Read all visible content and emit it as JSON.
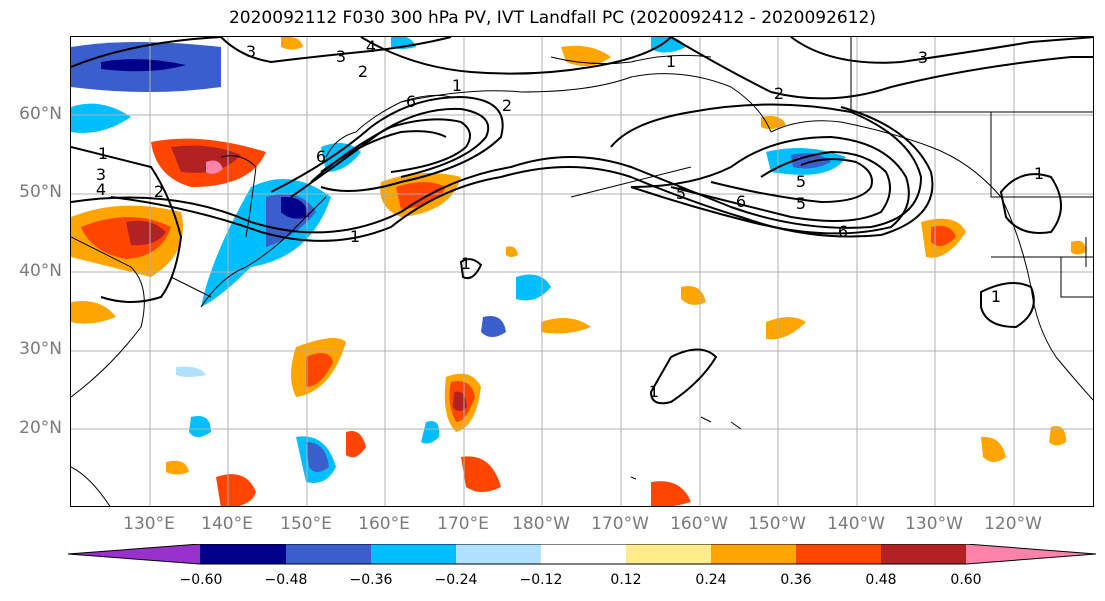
{
  "title": "2020092112 F030 300 hPa PV, IVT Landfall PC (2020092412 - 2020092612)",
  "lat_labels": [
    "60°N",
    "50°N",
    "40°N",
    "30°N",
    "20°N"
  ],
  "lon_labels": [
    "130°E",
    "140°E",
    "150°E",
    "160°E",
    "170°E",
    "180°W",
    "170°W",
    "160°W",
    "150°W",
    "140°W",
    "130°W",
    "120°W"
  ],
  "colorbar": {
    "ticks": [
      "−0.60",
      "−0.48",
      "−0.36",
      "−0.24",
      "−0.12",
      "0.12",
      "0.24",
      "0.36",
      "0.48",
      "0.60"
    ],
    "colors": [
      "#9932cc",
      "#00008b",
      "#3a5fcd",
      "#00bfff",
      "#b0e2ff",
      "#ffffff",
      "#ffec8b",
      "#ffa500",
      "#ff4500",
      "#b22222",
      "#ff82ab"
    ]
  },
  "contour_labels": [
    "3",
    "4",
    "3",
    "2",
    "3",
    "1",
    "2",
    "1",
    "2",
    "1",
    "3",
    "4",
    "2",
    "1",
    "5",
    "6",
    "5",
    "5",
    "6",
    "6",
    "6",
    "1",
    "1",
    "1",
    "1"
  ]
}
